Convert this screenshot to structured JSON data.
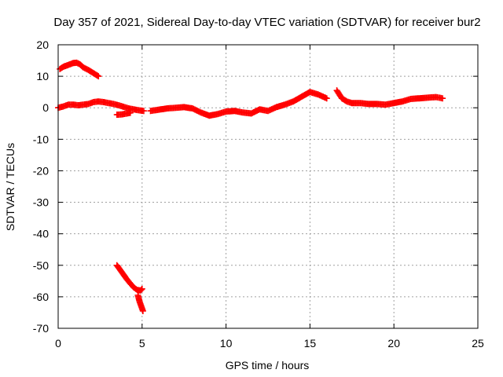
{
  "chart_data": {
    "type": "scatter",
    "title": "Day 357 of 2021, Sidereal Day-to-day VTEC variation (SDTVAR) for receiver bur2",
    "xlabel": "GPS time / hours",
    "ylabel": "SDTVAR / TECUs",
    "xlim": [
      0,
      25
    ],
    "ylim": [
      -70,
      20
    ],
    "xticks": [
      0,
      5,
      10,
      15,
      20,
      25
    ],
    "yticks": [
      -70,
      -60,
      -50,
      -40,
      -30,
      -20,
      -10,
      0,
      10,
      20
    ],
    "grid": true,
    "legend": "none",
    "series_color": "#ff0000",
    "series": [
      {
        "name": "track-early-high",
        "x": [
          0.1,
          0.3,
          0.5,
          0.7,
          0.9,
          1.1,
          1.3,
          1.5,
          1.8,
          2.1,
          2.4
        ],
        "y": [
          12.3,
          13.0,
          13.4,
          13.8,
          14.2,
          14.3,
          13.8,
          12.8,
          12.0,
          11.0,
          10.0
        ]
      },
      {
        "name": "track-main-low",
        "x": [
          0.0,
          0.3,
          0.6,
          0.9,
          1.2,
          1.5,
          1.8,
          2.1,
          2.4,
          2.7,
          3.0,
          3.3,
          3.6,
          3.9,
          4.2,
          4.5,
          4.8,
          5.1
        ],
        "y": [
          0.0,
          0.4,
          1.0,
          1.0,
          0.8,
          1.0,
          1.2,
          1.8,
          2.0,
          1.8,
          1.5,
          1.2,
          0.8,
          0.3,
          -0.2,
          -0.5,
          -0.8,
          -1.0
        ]
      },
      {
        "name": "track-short-dip",
        "x": [
          3.5,
          3.8,
          4.1,
          4.3
        ],
        "y": [
          -2.2,
          -2.1,
          -1.8,
          -1.6
        ]
      },
      {
        "name": "track-mid",
        "x": [
          5.5,
          6.0,
          6.5,
          7.0,
          7.5,
          8.0,
          8.5,
          9.0,
          9.5,
          10.0,
          10.5,
          11.0,
          11.5,
          12.0,
          12.5,
          13.0,
          13.5,
          14.0,
          14.5,
          15.0,
          15.5,
          16.0
        ],
        "y": [
          -1.0,
          -0.6,
          -0.2,
          0.0,
          0.2,
          -0.2,
          -1.5,
          -2.5,
          -2.0,
          -1.2,
          -1.0,
          -1.5,
          -1.8,
          -0.5,
          -1.0,
          0.2,
          1.0,
          2.0,
          3.5,
          5.0,
          4.2,
          3.0
        ]
      },
      {
        "name": "track-late",
        "x": [
          16.6,
          16.9,
          17.2,
          17.5,
          18.0,
          18.5,
          19.0,
          19.5,
          20.0,
          20.5,
          21.0,
          21.5,
          22.0,
          22.5,
          22.9
        ],
        "y": [
          5.5,
          3.0,
          2.0,
          1.5,
          1.5,
          1.2,
          1.2,
          1.0,
          1.5,
          2.0,
          2.8,
          3.0,
          3.2,
          3.4,
          3.0
        ]
      },
      {
        "name": "track-drop",
        "x": [
          3.5,
          3.7,
          3.9,
          4.1,
          4.3,
          4.5,
          4.7,
          4.9,
          5.0
        ],
        "y": [
          -50.0,
          -51.5,
          -53.0,
          -54.5,
          -55.8,
          -57.0,
          -57.8,
          -58.0,
          -57.5
        ]
      },
      {
        "name": "track-drop-tail",
        "x": [
          4.75,
          4.85,
          4.95,
          5.05
        ],
        "y": [
          -59.5,
          -61.5,
          -63.0,
          -64.5
        ]
      }
    ]
  }
}
